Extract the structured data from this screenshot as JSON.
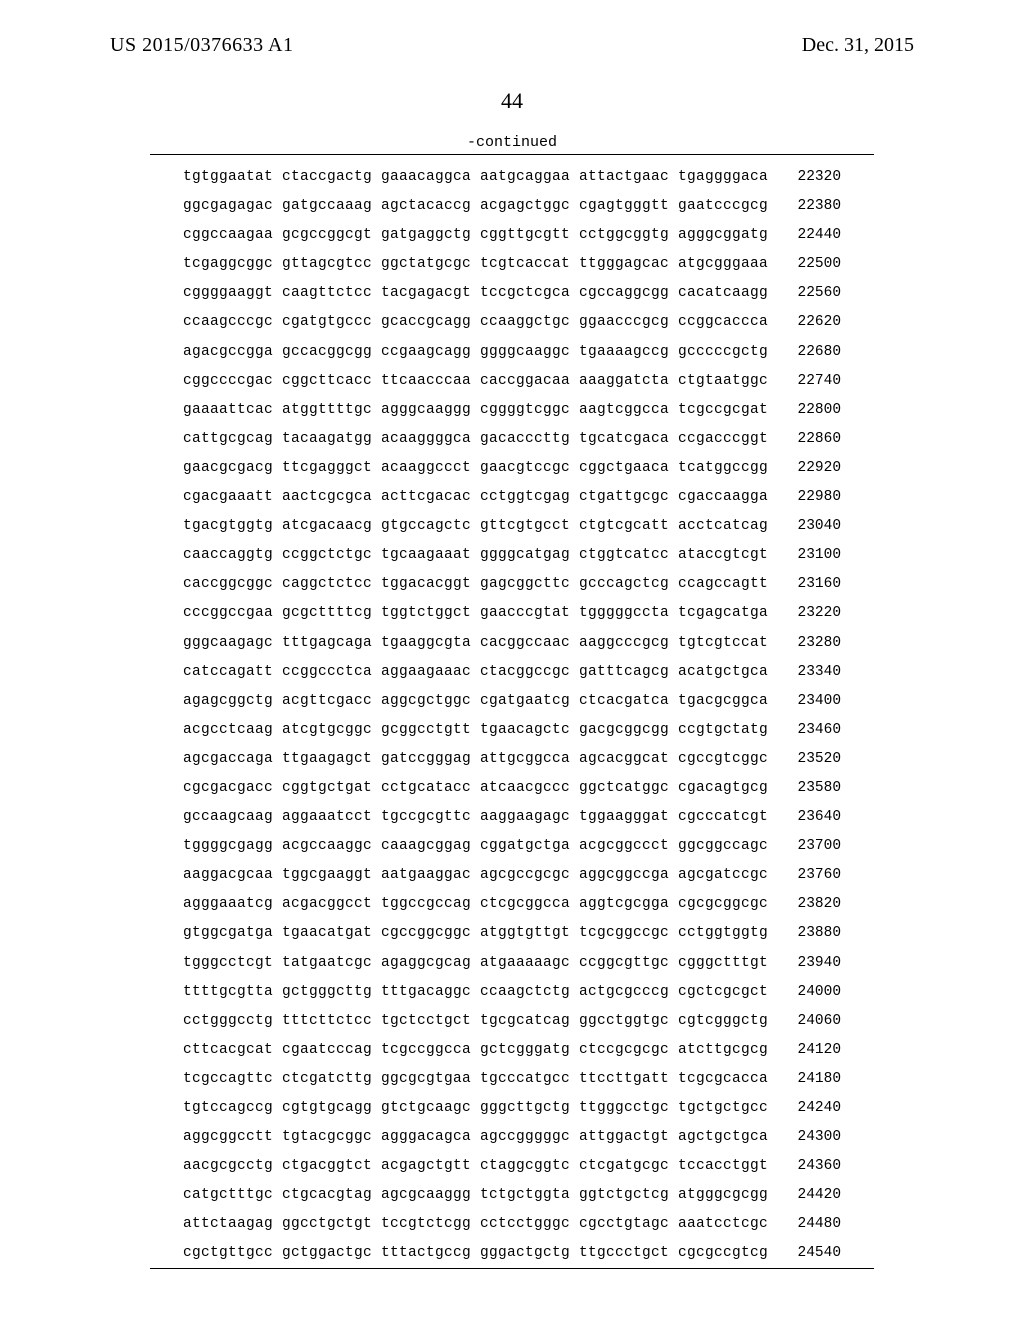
{
  "header": {
    "publication_number": "US 2015/0376633 A1",
    "publication_date": "Dec. 31, 2015",
    "page_number": "44",
    "continued_label": "-continued"
  },
  "sequence": {
    "font_family": "Courier New",
    "font_size_pt": 11,
    "rows": [
      {
        "groups": [
          "tgtggaatat",
          "ctaccgactg",
          "gaaacaggca",
          "aatgcaggaa",
          "attactgaac",
          "tgaggggaca"
        ],
        "pos": "22320"
      },
      {
        "groups": [
          "ggcgagagac",
          "gatgccaaag",
          "agctacaccg",
          "acgagctggc",
          "cgagtgggtt",
          "gaatcccgcg"
        ],
        "pos": "22380"
      },
      {
        "groups": [
          "cggccaagaa",
          "gcgccggcgt",
          "gatgaggctg",
          "cggttgcgtt",
          "cctggcggtg",
          "agggcggatg"
        ],
        "pos": "22440"
      },
      {
        "groups": [
          "tcgaggcggc",
          "gttagcgtcc",
          "ggctatgcgc",
          "tcgtcaccat",
          "ttgggagcac",
          "atgcgggaaa"
        ],
        "pos": "22500"
      },
      {
        "groups": [
          "cggggaaggt",
          "caagttctcc",
          "tacgagacgt",
          "tccgctcgca",
          "cgccaggcgg",
          "cacatcaagg"
        ],
        "pos": "22560"
      },
      {
        "groups": [
          "ccaagcccgc",
          "cgatgtgccc",
          "gcaccgcagg",
          "ccaaggctgc",
          "ggaacccgcg",
          "ccggcaccca"
        ],
        "pos": "22620"
      },
      {
        "groups": [
          "agacgccgga",
          "gccacggcgg",
          "ccgaagcagg",
          "ggggcaaggc",
          "tgaaaagccg",
          "gcccccgctg"
        ],
        "pos": "22680"
      },
      {
        "groups": [
          "cggccccgac",
          "cggcttcacc",
          "ttcaacccaa",
          "caccggacaa",
          "aaaggatcta",
          "ctgtaatggc"
        ],
        "pos": "22740"
      },
      {
        "groups": [
          "gaaaattcac",
          "atggttttgc",
          "agggcaaggg",
          "cggggtcggc",
          "aagtcggcca",
          "tcgccgcgat"
        ],
        "pos": "22800"
      },
      {
        "groups": [
          "cattgcgcag",
          "tacaagatgg",
          "acaaggggca",
          "gacacccttg",
          "tgcatcgaca",
          "ccgacccggt"
        ],
        "pos": "22860"
      },
      {
        "groups": [
          "gaacgcgacg",
          "ttcgagggct",
          "acaaggccct",
          "gaacgtccgc",
          "cggctgaaca",
          "tcatggccgg"
        ],
        "pos": "22920"
      },
      {
        "groups": [
          "cgacgaaatt",
          "aactcgcgca",
          "acttcgacac",
          "cctggtcgag",
          "ctgattgcgc",
          "cgaccaagga"
        ],
        "pos": "22980"
      },
      {
        "groups": [
          "tgacgtggtg",
          "atcgacaacg",
          "gtgccagctc",
          "gttcgtgcct",
          "ctgtcgcatt",
          "acctcatcag"
        ],
        "pos": "23040"
      },
      {
        "groups": [
          "caaccaggtg",
          "ccggctctgc",
          "tgcaagaaat",
          "ggggcatgag",
          "ctggtcatcc",
          "ataccgtcgt"
        ],
        "pos": "23100"
      },
      {
        "groups": [
          "caccggcggc",
          "caggctctcc",
          "tggacacggt",
          "gagcggcttc",
          "gcccagctcg",
          "ccagccagtt"
        ],
        "pos": "23160"
      },
      {
        "groups": [
          "cccggccgaa",
          "gcgcttttcg",
          "tggtctggct",
          "gaacccgtat",
          "tgggggccta",
          "tcgagcatga"
        ],
        "pos": "23220"
      },
      {
        "groups": [
          "gggcaagagc",
          "tttgagcaga",
          "tgaaggcgta",
          "cacggccaac",
          "aaggcccgcg",
          "tgtcgtccat"
        ],
        "pos": "23280"
      },
      {
        "groups": [
          "catccagatt",
          "ccggccctca",
          "aggaagaaac",
          "ctacggccgc",
          "gatttcagcg",
          "acatgctgca"
        ],
        "pos": "23340"
      },
      {
        "groups": [
          "agagcggctg",
          "acgttcgacc",
          "aggcgctggc",
          "cgatgaatcg",
          "ctcacgatca",
          "tgacgcggca"
        ],
        "pos": "23400"
      },
      {
        "groups": [
          "acgcctcaag",
          "atcgtgcggc",
          "gcggcctgtt",
          "tgaacagctc",
          "gacgcggcgg",
          "ccgtgctatg"
        ],
        "pos": "23460"
      },
      {
        "groups": [
          "agcgaccaga",
          "ttgaagagct",
          "gatccgggag",
          "attgcggcca",
          "agcacggcat",
          "cgccgtcggc"
        ],
        "pos": "23520"
      },
      {
        "groups": [
          "cgcgacgacc",
          "cggtgctgat",
          "cctgcatacc",
          "atcaacgccc",
          "ggctcatggc",
          "cgacagtgcg"
        ],
        "pos": "23580"
      },
      {
        "groups": [
          "gccaagcaag",
          "aggaaatcct",
          "tgccgcgttc",
          "aaggaagagc",
          "tggaagggat",
          "cgcccatcgt"
        ],
        "pos": "23640"
      },
      {
        "groups": [
          "tggggcgagg",
          "acgccaaggc",
          "caaagcggag",
          "cggatgctga",
          "acgcggccct",
          "ggcggccagc"
        ],
        "pos": "23700"
      },
      {
        "groups": [
          "aaggacgcaa",
          "tggcgaaggt",
          "aatgaaggac",
          "agcgccgcgc",
          "aggcggccga",
          "agcgatccgc"
        ],
        "pos": "23760"
      },
      {
        "groups": [
          "agggaaatcg",
          "acgacggcct",
          "tggccgccag",
          "ctcgcggcca",
          "aggtcgcgga",
          "cgcgcggcgc"
        ],
        "pos": "23820"
      },
      {
        "groups": [
          "gtggcgatga",
          "tgaacatgat",
          "cgccggcggc",
          "atggtgttgt",
          "tcgcggccgc",
          "cctggtggtg"
        ],
        "pos": "23880"
      },
      {
        "groups": [
          "tgggcctcgt",
          "tatgaatcgc",
          "agaggcgcag",
          "atgaaaaagc",
          "ccggcgttgc",
          "cgggctttgt"
        ],
        "pos": "23940"
      },
      {
        "groups": [
          "ttttgcgtta",
          "gctgggcttg",
          "tttgacaggc",
          "ccaagctctg",
          "actgcgcccg",
          "cgctcgcgct"
        ],
        "pos": "24000"
      },
      {
        "groups": [
          "cctgggcctg",
          "tttcttctcc",
          "tgctcctgct",
          "tgcgcatcag",
          "ggcctggtgc",
          "cgtcgggctg"
        ],
        "pos": "24060"
      },
      {
        "groups": [
          "cttcacgcat",
          "cgaatcccag",
          "tcgccggcca",
          "gctcgggatg",
          "ctccgcgcgc",
          "atcttgcgcg"
        ],
        "pos": "24120"
      },
      {
        "groups": [
          "tcgccagttc",
          "ctcgatcttg",
          "ggcgcgtgaa",
          "tgcccatgcc",
          "ttccttgatt",
          "tcgcgcacca"
        ],
        "pos": "24180"
      },
      {
        "groups": [
          "tgtccagccg",
          "cgtgtgcagg",
          "gtctgcaagc",
          "gggcttgctg",
          "ttgggcctgc",
          "tgctgctgcc"
        ],
        "pos": "24240"
      },
      {
        "groups": [
          "aggcggcctt",
          "tgtacgcggc",
          "agggacagca",
          "agccgggggc",
          "attggactgt",
          "agctgctgca"
        ],
        "pos": "24300"
      },
      {
        "groups": [
          "aacgcgcctg",
          "ctgacggtct",
          "acgagctgtt",
          "ctaggcggtc",
          "ctcgatgcgc",
          "tccacctggt"
        ],
        "pos": "24360"
      },
      {
        "groups": [
          "catgctttgc",
          "ctgcacgtag",
          "agcgcaaggg",
          "tctgctggta",
          "ggtctgctcg",
          "atgggcgcgg"
        ],
        "pos": "24420"
      },
      {
        "groups": [
          "attctaagag",
          "ggcctgctgt",
          "tccgtctcgg",
          "cctcctgggc",
          "cgcctgtagc",
          "aaatcctcgc"
        ],
        "pos": "24480"
      },
      {
        "groups": [
          "cgctgttgcc",
          "gctggactgc",
          "tttactgccg",
          "gggactgctg",
          "ttgccctgct",
          "cgcgccgtcg"
        ],
        "pos": "24540"
      }
    ]
  }
}
